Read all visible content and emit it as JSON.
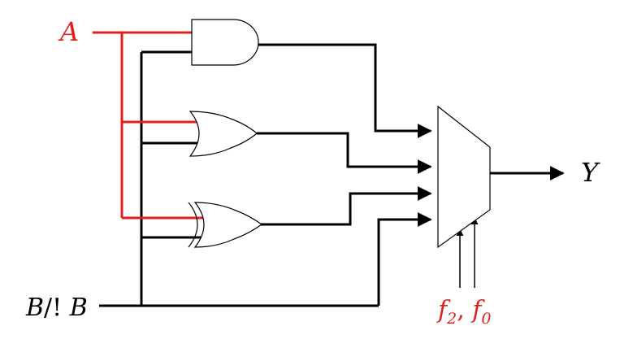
{
  "labels": {
    "input_a": "A",
    "input_b_prefix": "B",
    "input_b_sep": "/! ",
    "input_b_suffix": "B",
    "output": "Y",
    "select_f": "f",
    "select_sub_1": "2",
    "select_sep": ", ",
    "select_sub_2": "0"
  },
  "colors": {
    "wire": "#000000",
    "input_a_wire": "#e02020",
    "select_label": "#e02020",
    "text": "#000000",
    "gate_fill": "#ffffff"
  },
  "components": [
    "and-gate",
    "or-gate",
    "xor-gate",
    "multiplexer"
  ]
}
